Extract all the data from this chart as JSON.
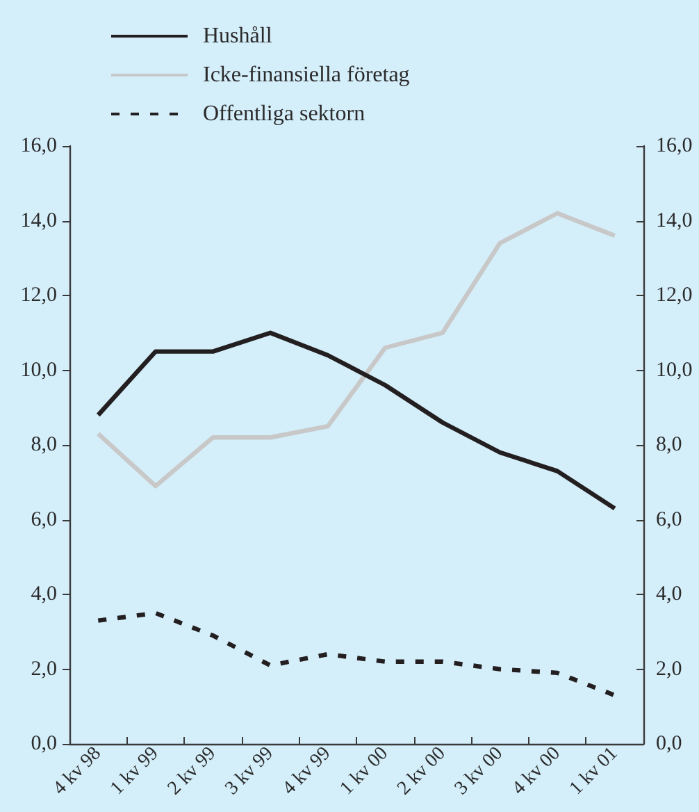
{
  "chart_data": {
    "type": "line",
    "categories": [
      "4 kv 98",
      "1 kv 99",
      "2 kv 99",
      "3 kv 99",
      "4 kv 99",
      "1 kv 00",
      "2 kv 00",
      "3 kv 00",
      "4 kv 00",
      "1 kv 01"
    ],
    "series": [
      {
        "name": "Hushåll",
        "color": "#231f20",
        "line_style": "solid",
        "values": [
          8.8,
          10.5,
          10.5,
          11.0,
          10.4,
          9.6,
          8.6,
          7.8,
          7.3,
          6.3
        ]
      },
      {
        "name": "Icke-finansiella företag",
        "color": "#c8c8c8",
        "line_style": "solid",
        "values": [
          8.3,
          6.9,
          8.2,
          8.2,
          8.5,
          10.6,
          11.0,
          13.4,
          14.2,
          13.6
        ]
      },
      {
        "name": "Offentliga sektorn",
        "color": "#231f20",
        "line_style": "dashed",
        "values": [
          3.3,
          3.5,
          2.9,
          2.1,
          2.4,
          2.2,
          2.2,
          2.0,
          1.9,
          1.3
        ]
      }
    ],
    "ylim": [
      0,
      16
    ],
    "yticks": [
      {
        "value": 0,
        "label": "0,0"
      },
      {
        "value": 2,
        "label": "2,0"
      },
      {
        "value": 4,
        "label": "4,0"
      },
      {
        "value": 6,
        "label": "6,0"
      },
      {
        "value": 8,
        "label": "8,0"
      },
      {
        "value": 10,
        "label": "10,0"
      },
      {
        "value": 12,
        "label": "12,0"
      },
      {
        "value": 14,
        "label": "14,0"
      },
      {
        "value": 16,
        "label": "16,0"
      }
    ],
    "y2lim": [
      0,
      16
    ],
    "y2ticks": [
      {
        "value": 0,
        "label": "0,0"
      },
      {
        "value": 2,
        "label": "2,0"
      },
      {
        "value": 4,
        "label": "4,0"
      },
      {
        "value": 6,
        "label": "6,0"
      },
      {
        "value": 8,
        "label": "8,0"
      },
      {
        "value": 10,
        "label": "10,0"
      },
      {
        "value": 12,
        "label": "12,0"
      },
      {
        "value": 14,
        "label": "14,0"
      },
      {
        "value": 16,
        "label": "16,0"
      }
    ],
    "grid": false,
    "legend": "top",
    "marker": "none"
  }
}
